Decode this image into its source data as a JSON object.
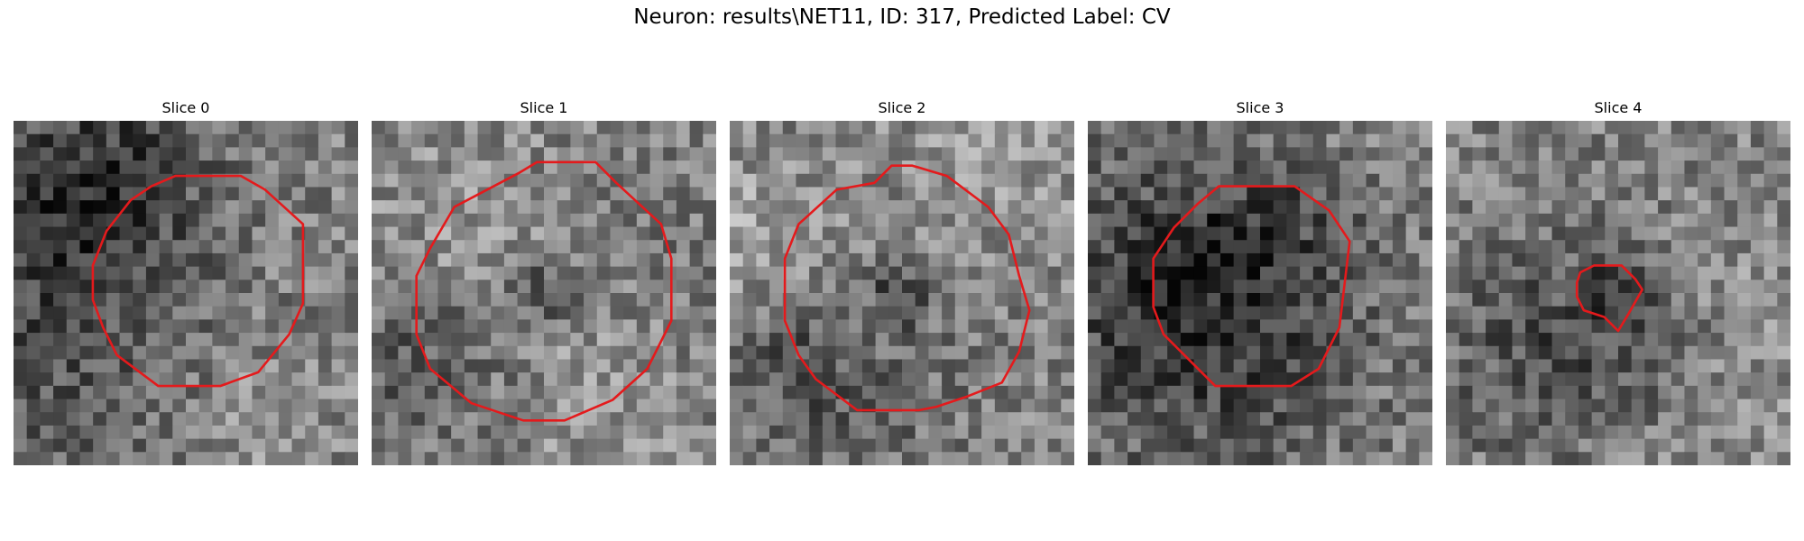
{
  "figure": {
    "title": "Neuron: results\\NET11, ID: 317, Predicted Label: CV",
    "outline_color": "#e41a1c"
  },
  "slices": [
    {
      "label": "Slice 0",
      "seed": 11,
      "dark_center": false,
      "outline": [
        [
          0.47,
          0.16
        ],
        [
          0.66,
          0.16
        ],
        [
          0.73,
          0.2
        ],
        [
          0.84,
          0.3
        ],
        [
          0.84,
          0.53
        ],
        [
          0.8,
          0.62
        ],
        [
          0.71,
          0.73
        ],
        [
          0.6,
          0.77
        ],
        [
          0.42,
          0.77
        ],
        [
          0.3,
          0.68
        ],
        [
          0.26,
          0.6
        ],
        [
          0.23,
          0.52
        ],
        [
          0.23,
          0.42
        ],
        [
          0.27,
          0.32
        ],
        [
          0.34,
          0.23
        ],
        [
          0.4,
          0.19
        ]
      ]
    },
    {
      "label": "Slice 1",
      "seed": 23,
      "dark_center": true,
      "outline": [
        [
          0.43,
          0.15
        ],
        [
          0.48,
          0.12
        ],
        [
          0.65,
          0.12
        ],
        [
          0.71,
          0.18
        ],
        [
          0.84,
          0.3
        ],
        [
          0.87,
          0.4
        ],
        [
          0.87,
          0.58
        ],
        [
          0.84,
          0.64
        ],
        [
          0.8,
          0.72
        ],
        [
          0.7,
          0.81
        ],
        [
          0.56,
          0.87
        ],
        [
          0.44,
          0.87
        ],
        [
          0.29,
          0.82
        ],
        [
          0.17,
          0.72
        ],
        [
          0.13,
          0.62
        ],
        [
          0.13,
          0.45
        ],
        [
          0.17,
          0.37
        ],
        [
          0.24,
          0.25
        ]
      ]
    },
    {
      "label": "Slice 2",
      "seed": 37,
      "dark_center": true,
      "outline": [
        [
          0.42,
          0.18
        ],
        [
          0.47,
          0.13
        ],
        [
          0.53,
          0.13
        ],
        [
          0.63,
          0.16
        ],
        [
          0.75,
          0.25
        ],
        [
          0.81,
          0.33
        ],
        [
          0.84,
          0.45
        ],
        [
          0.87,
          0.55
        ],
        [
          0.84,
          0.67
        ],
        [
          0.79,
          0.76
        ],
        [
          0.69,
          0.8
        ],
        [
          0.6,
          0.83
        ],
        [
          0.55,
          0.84
        ],
        [
          0.37,
          0.84
        ],
        [
          0.25,
          0.75
        ],
        [
          0.2,
          0.68
        ],
        [
          0.16,
          0.58
        ],
        [
          0.16,
          0.4
        ],
        [
          0.2,
          0.3
        ],
        [
          0.31,
          0.2
        ]
      ]
    },
    {
      "label": "Slice 3",
      "seed": 53,
      "dark_center": false,
      "outline": [
        [
          0.25,
          0.31
        ],
        [
          0.32,
          0.24
        ],
        [
          0.38,
          0.19
        ],
        [
          0.6,
          0.19
        ],
        [
          0.7,
          0.26
        ],
        [
          0.76,
          0.35
        ],
        [
          0.73,
          0.6
        ],
        [
          0.67,
          0.72
        ],
        [
          0.59,
          0.77
        ],
        [
          0.37,
          0.77
        ],
        [
          0.28,
          0.68
        ],
        [
          0.22,
          0.62
        ],
        [
          0.19,
          0.54
        ],
        [
          0.19,
          0.4
        ]
      ]
    },
    {
      "label": "Slice 4",
      "seed": 71,
      "dark_center": true,
      "outline": [
        [
          0.39,
          0.44
        ],
        [
          0.43,
          0.42
        ],
        [
          0.51,
          0.42
        ],
        [
          0.55,
          0.46
        ],
        [
          0.57,
          0.49
        ],
        [
          0.53,
          0.56
        ],
        [
          0.5,
          0.61
        ],
        [
          0.46,
          0.57
        ],
        [
          0.4,
          0.55
        ],
        [
          0.38,
          0.51
        ],
        [
          0.38,
          0.47
        ]
      ]
    }
  ]
}
